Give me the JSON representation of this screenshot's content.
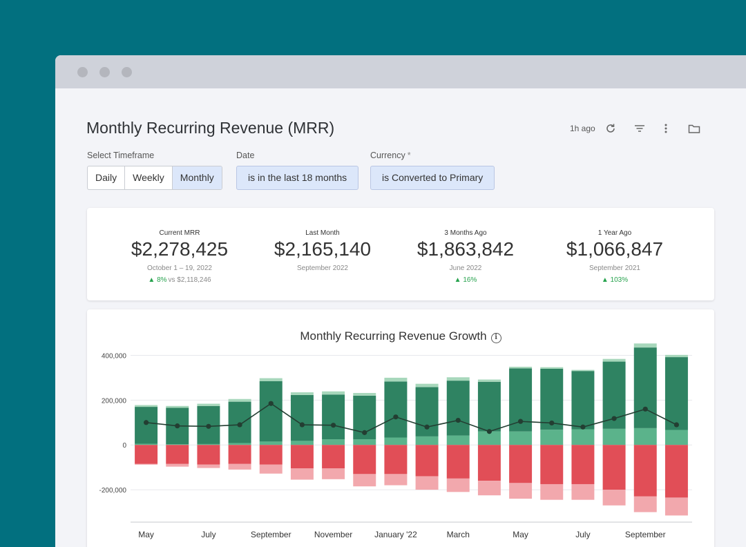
{
  "header": {
    "title": "Monthly Recurring Revenue (MRR)",
    "updated": "1h ago",
    "icons": [
      "refresh-icon",
      "filter-icon",
      "more-vertical-icon",
      "folder-icon"
    ]
  },
  "filters": {
    "timeframe": {
      "label": "Select Timeframe",
      "options": [
        "Daily",
        "Weekly",
        "Monthly"
      ],
      "selected": "Monthly"
    },
    "date": {
      "label": "Date",
      "value": "is in the last 18 months"
    },
    "currency": {
      "label": "Currency",
      "required_mark": "*",
      "value": "is Converted to Primary"
    }
  },
  "kpis": [
    {
      "label": "Current MRR",
      "value": "$2,278,425",
      "sub": "October 1 – 19, 2022",
      "change": "8%",
      "vs": "vs $2,118,246"
    },
    {
      "label": "Last Month",
      "value": "$2,165,140",
      "sub": "September 2022"
    },
    {
      "label": "3 Months Ago",
      "value": "$1,863,842",
      "sub": "June 2022",
      "change": "16%"
    },
    {
      "label": "1 Year Ago",
      "value": "$1,066,847",
      "sub": "September 2021",
      "change": "103%"
    }
  ],
  "chart_data": {
    "type": "bar",
    "title": "Monthly Recurring Revenue Growth",
    "stacked": true,
    "ylim": [
      -320000,
      420000
    ],
    "yticks": [
      400000,
      200000,
      0,
      -200000
    ],
    "ytick_labels": [
      "400,000",
      "200,000",
      "0",
      "-200,000"
    ],
    "x_tick_labels": [
      "May",
      "July",
      "September",
      "November",
      "January '22",
      "March",
      "May",
      "July",
      "September"
    ],
    "x_tick_index": [
      0,
      2,
      4,
      6,
      8,
      10,
      12,
      14,
      16
    ],
    "grid": true,
    "colors": {
      "top": "#a7d7bb",
      "main": "#2f8362",
      "light": "#5bb38b",
      "red": "#e14e57",
      "pink": "#f2a8ad",
      "line": "#233e32"
    },
    "series": [
      {
        "stack": "positive",
        "values": [
          5000,
          3000,
          4000,
          8000,
          15000,
          18000,
          25000,
          25000,
          33000,
          38000,
          42000,
          60000,
          60000,
          68000,
          70000,
          72000,
          75000,
          67000
        ]
      },
      {
        "stack": "positive",
        "values": [
          165000,
          163000,
          170000,
          185000,
          270000,
          205000,
          200000,
          195000,
          250000,
          220000,
          245000,
          222000,
          282000,
          272000,
          260000,
          300000,
          360000,
          325000
        ]
      },
      {
        "stack": "positive",
        "values": [
          8000,
          8000,
          10000,
          12000,
          13000,
          12000,
          14000,
          12000,
          17000,
          15000,
          15000,
          10000,
          7000,
          7000,
          5000,
          12000,
          18000,
          10000
        ]
      },
      {
        "stack": "negative",
        "values": [
          -85000,
          -85000,
          -88000,
          -85000,
          -88000,
          -105000,
          -105000,
          -130000,
          -130000,
          -140000,
          -150000,
          -160000,
          -170000,
          -175000,
          -175000,
          -200000,
          -230000,
          -235000
        ]
      },
      {
        "stack": "negative",
        "values": [
          -3000,
          -12000,
          -15000,
          -25000,
          -40000,
          -50000,
          -48000,
          -55000,
          -50000,
          -60000,
          -60000,
          -65000,
          -70000,
          -70000,
          -70000,
          -70000,
          -70000,
          -80000
        ]
      },
      {
        "type": "line",
        "values": [
          100000,
          85000,
          83000,
          90000,
          185000,
          90000,
          88000,
          55000,
          125000,
          80000,
          110000,
          60000,
          105000,
          98000,
          80000,
          118000,
          160000,
          90000
        ]
      }
    ]
  }
}
